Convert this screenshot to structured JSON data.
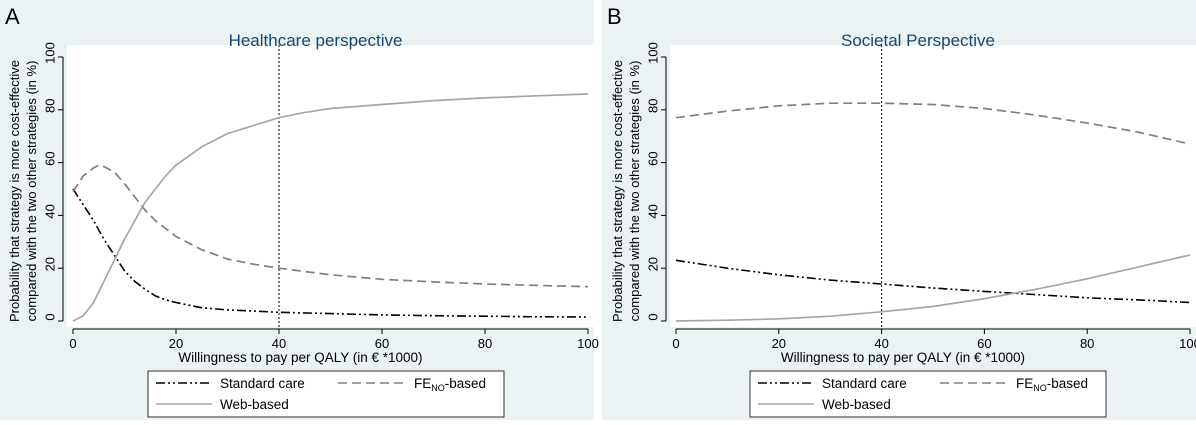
{
  "colors": {
    "panel_bg": "#eaf2f3",
    "plot_bg": "#ffffff",
    "title": "#1a476f",
    "axis": "#000000",
    "standard_care": "#000000",
    "feno_based": "#7f7f7f",
    "web_based": "#a6a6a6"
  },
  "chart_data": [
    {
      "type": "line",
      "panel_label": "A",
      "title": "Healthcare perspective",
      "xlabel": "Willingness to pay per QALY (in € *1000)",
      "ylabel_line1": "Probability that strategy is more cost-effective",
      "ylabel_line2": "compared with the two other strategies (in %)",
      "xlim": [
        0,
        100
      ],
      "ylim": [
        0,
        100
      ],
      "xticks": [
        0,
        20,
        40,
        60,
        80,
        100
      ],
      "yticks": [
        0,
        20,
        40,
        60,
        80,
        100
      ],
      "reference_line_x": 40,
      "legend_position": "bottom",
      "grid": false,
      "series": [
        {
          "name": "Standard care",
          "style": "dash-dot-dot",
          "x": [
            0,
            2,
            4,
            6,
            8,
            10,
            12,
            14,
            16,
            18,
            20,
            25,
            30,
            35,
            40,
            50,
            60,
            70,
            80,
            90,
            100
          ],
          "y": [
            50,
            44,
            38,
            31,
            25,
            19,
            15,
            12,
            9.5,
            8,
            7,
            5,
            4.2,
            3.8,
            3.3,
            2.8,
            2.3,
            2,
            1.8,
            1.6,
            1.5
          ]
        },
        {
          "name": "FE_NO-based",
          "style": "dash",
          "x": [
            0,
            2,
            4,
            5,
            6,
            8,
            10,
            12,
            14,
            16,
            18,
            20,
            25,
            30,
            35,
            40,
            50,
            60,
            70,
            80,
            90,
            100
          ],
          "y": [
            49,
            55,
            58,
            59,
            58.5,
            56.5,
            52,
            47,
            42,
            38,
            35,
            32,
            27,
            23.5,
            21.5,
            20,
            17.5,
            15.8,
            14.8,
            14,
            13.5,
            13
          ]
        },
        {
          "name": "Web-based",
          "style": "solid",
          "x": [
            0,
            2,
            4,
            6,
            8,
            10,
            12,
            14,
            16,
            18,
            20,
            25,
            30,
            35,
            40,
            45,
            50,
            60,
            70,
            80,
            90,
            100
          ],
          "y": [
            0,
            2,
            7,
            15,
            23,
            31,
            38,
            45,
            50,
            55,
            59,
            66,
            71,
            74,
            77,
            79,
            80.5,
            82,
            83.5,
            84.5,
            85.3,
            86
          ]
        }
      ]
    },
    {
      "type": "line",
      "panel_label": "B",
      "title": "Societal Perspective",
      "xlabel": "Willingness to pay per QALY (in € *1000)",
      "ylabel_line1": "Probability that strategy is more cost-effective",
      "ylabel_line2": "compared with the two other strategies (in %)",
      "xlim": [
        0,
        100
      ],
      "ylim": [
        0,
        100
      ],
      "xticks": [
        0,
        20,
        40,
        60,
        80,
        100
      ],
      "yticks": [
        0,
        20,
        40,
        60,
        80,
        100
      ],
      "reference_line_x": 40,
      "legend_position": "bottom",
      "grid": false,
      "series": [
        {
          "name": "Standard care",
          "style": "dash-dot-dot",
          "x": [
            0,
            10,
            20,
            30,
            40,
            50,
            60,
            70,
            80,
            90,
            100
          ],
          "y": [
            23,
            20,
            17.5,
            15.5,
            14,
            12.5,
            11.2,
            10,
            8.8,
            8,
            7
          ]
        },
        {
          "name": "FE_NO-based",
          "style": "dash",
          "x": [
            0,
            10,
            20,
            30,
            40,
            50,
            60,
            70,
            80,
            90,
            100
          ],
          "y": [
            77,
            79.5,
            81.5,
            82.5,
            82.5,
            82,
            80.5,
            78,
            75,
            71.5,
            67
          ]
        },
        {
          "name": "Web-based",
          "style": "solid",
          "x": [
            0,
            10,
            20,
            30,
            40,
            50,
            60,
            70,
            80,
            90,
            100
          ],
          "y": [
            0,
            0.3,
            0.8,
            1.8,
            3.5,
            5.5,
            8.5,
            12,
            16,
            20.5,
            25
          ]
        }
      ]
    }
  ],
  "legend": {
    "standard_care": "Standard care",
    "feno_prefix": "FE",
    "feno_subscript": "NO",
    "feno_suffix": "-based",
    "web_based": "Web-based"
  }
}
